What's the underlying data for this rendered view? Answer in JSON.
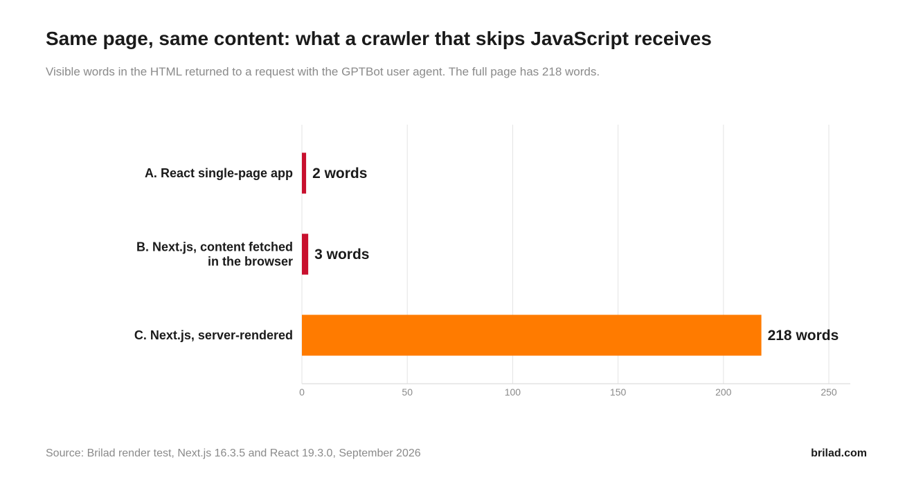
{
  "title": "Same page, same content: what a crawler that skips JavaScript receives",
  "subtitle": "Visible words in the HTML returned to a request with the GPTBot user agent. The full page has 218 words.",
  "footer": {
    "source": "Source: Brilad render test, Next.js 16.3.5 and React 19.3.0, September 2026",
    "brand": "brilad.com"
  },
  "chart_data": {
    "type": "bar",
    "orientation": "horizontal",
    "title": "Same page, same content: what a crawler that skips JavaScript receives",
    "subtitle": "Visible words in the HTML returned to a request with the GPTBot user agent. The full page has 218 words.",
    "categories": [
      [
        "A. React single-page app"
      ],
      [
        "B. Next.js, content fetched",
        "in the browser"
      ],
      [
        "C. Next.js, server-rendered"
      ]
    ],
    "values": [
      2,
      3,
      218
    ],
    "value_labels": [
      "2 words",
      "3 words",
      "218 words"
    ],
    "colors": [
      "#c8102e",
      "#c8102e",
      "#ff7b00"
    ],
    "xlim": [
      0,
      260
    ],
    "xticks": [
      0,
      50,
      100,
      150,
      200,
      250
    ],
    "grid": true,
    "legend": "none"
  }
}
